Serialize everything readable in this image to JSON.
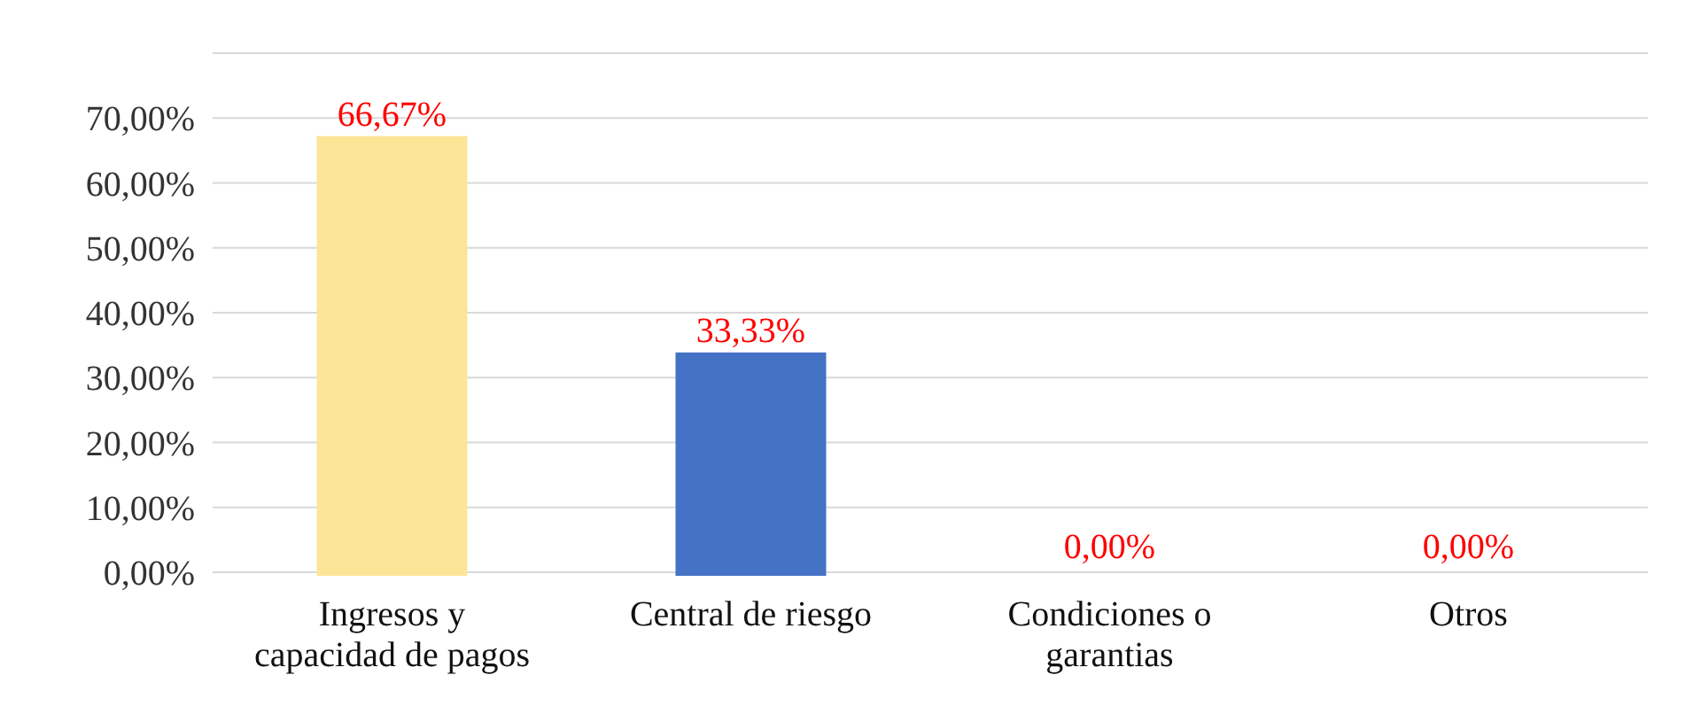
{
  "chart_data": {
    "type": "bar",
    "categories": [
      "Ingresos y capacidad de pagos",
      "Central de riesgo",
      "Condiciones o garantias",
      "Otros"
    ],
    "values": [
      66.67,
      33.33,
      0,
      0
    ],
    "colors": [
      "#fde597",
      "#4472c4",
      "#a5a5a5",
      "#70ad47"
    ],
    "value_labels": [
      "66,67%",
      "33,33%",
      "0,00%",
      "0,00%"
    ],
    "ylim": [
      0,
      80
    ],
    "yticks": [
      {
        "value": 0,
        "label": "0,00%"
      },
      {
        "value": 10,
        "label": "10,00%"
      },
      {
        "value": 20,
        "label": "20,00%"
      },
      {
        "value": 30,
        "label": "30,00%"
      },
      {
        "value": 40,
        "label": "40,00%"
      },
      {
        "value": 50,
        "label": "50,00%"
      },
      {
        "value": 60,
        "label": "60,00%"
      },
      {
        "value": 70,
        "label": "70,00%"
      }
    ],
    "grid": "y"
  }
}
